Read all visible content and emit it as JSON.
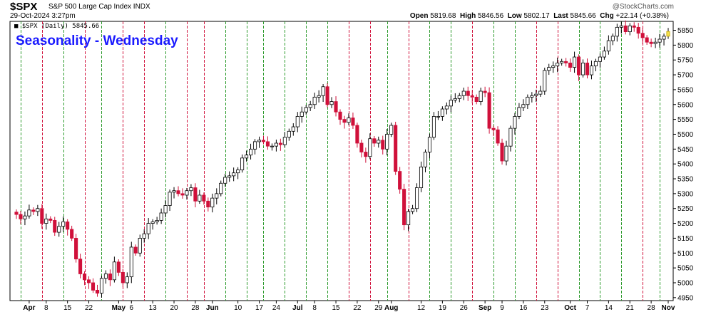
{
  "header": {
    "symbol": "$SPX",
    "name": "S&P 500 Large Cap Index INDX",
    "datetime": "29-Oct-2024 3:27pm",
    "watermark": "@StockCharts.com",
    "open_label": "Open",
    "open": "5819.68",
    "high_label": "High",
    "high": "5846.56",
    "low_label": "Low",
    "low": "5802.17",
    "last_label": "Last",
    "last": "5845.66",
    "chg_label": "Chg",
    "chg": "+22.14 (+0.38%)"
  },
  "legend": "■ $SPX (Daily) 5845.66",
  "chart_data": {
    "type": "candlestick",
    "title": "Seasonality - Wednesday",
    "ylim": [
      4940,
      5880
    ],
    "y_ticks": [
      4950,
      5000,
      5050,
      5100,
      5150,
      5200,
      5250,
      5300,
      5350,
      5400,
      5450,
      5500,
      5550,
      5600,
      5650,
      5700,
      5750,
      5800,
      5850
    ],
    "x_labels": [
      {
        "label": "Apr",
        "i": 3
      },
      {
        "label": "8",
        "i": 7
      },
      {
        "label": "15",
        "i": 12
      },
      {
        "label": "22",
        "i": 17
      },
      {
        "label": "May",
        "i": 24
      },
      {
        "label": "6",
        "i": 27
      },
      {
        "label": "13",
        "i": 32
      },
      {
        "label": "20",
        "i": 37
      },
      {
        "label": "28",
        "i": 42
      },
      {
        "label": "Jun",
        "i": 46
      },
      {
        "label": "10",
        "i": 52
      },
      {
        "label": "17",
        "i": 57
      },
      {
        "label": "24",
        "i": 61
      },
      {
        "label": "Jul",
        "i": 66
      },
      {
        "label": "8",
        "i": 70
      },
      {
        "label": "15",
        "i": 75
      },
      {
        "label": "22",
        "i": 80
      },
      {
        "label": "29",
        "i": 85
      },
      {
        "label": "Aug",
        "i": 88
      },
      {
        "label": "12",
        "i": 95
      },
      {
        "label": "19",
        "i": 100
      },
      {
        "label": "26",
        "i": 105
      },
      {
        "label": "Sep",
        "i": 110
      },
      {
        "label": "9",
        "i": 114
      },
      {
        "label": "16",
        "i": 119
      },
      {
        "label": "23",
        "i": 124
      },
      {
        "label": "Oct",
        "i": 130
      },
      {
        "label": "7",
        "i": 134
      },
      {
        "label": "14",
        "i": 139
      },
      {
        "label": "21",
        "i": 144
      },
      {
        "label": "28",
        "i": 149
      },
      {
        "label": "Nov",
        "i": 153
      }
    ],
    "wednesday_lines": [
      {
        "i": 1,
        "kind": "green"
      },
      {
        "i": 6,
        "kind": "red"
      },
      {
        "i": 11,
        "kind": "green"
      },
      {
        "i": 16,
        "kind": "red"
      },
      {
        "i": 20,
        "kind": "green"
      },
      {
        "i": 25,
        "kind": "red"
      },
      {
        "i": 30,
        "kind": "red"
      },
      {
        "i": 35,
        "kind": "green"
      },
      {
        "i": 40,
        "kind": "red"
      },
      {
        "i": 44,
        "kind": "red"
      },
      {
        "i": 49,
        "kind": "green"
      },
      {
        "i": 54,
        "kind": "green"
      },
      {
        "i": 58,
        "kind": "green"
      },
      {
        "i": 63,
        "kind": "green"
      },
      {
        "i": 68,
        "kind": "green"
      },
      {
        "i": 73,
        "kind": "green"
      },
      {
        "i": 78,
        "kind": "red"
      },
      {
        "i": 83,
        "kind": "red"
      },
      {
        "i": 87,
        "kind": "green"
      },
      {
        "i": 92,
        "kind": "red"
      },
      {
        "i": 97,
        "kind": "green"
      },
      {
        "i": 102,
        "kind": "green"
      },
      {
        "i": 107,
        "kind": "red"
      },
      {
        "i": 112,
        "kind": "green"
      },
      {
        "i": 117,
        "kind": "green"
      },
      {
        "i": 122,
        "kind": "red"
      },
      {
        "i": 127,
        "kind": "red"
      },
      {
        "i": 132,
        "kind": "green"
      },
      {
        "i": 137,
        "kind": "green"
      },
      {
        "i": 142,
        "kind": "green"
      },
      {
        "i": 147,
        "kind": "red"
      },
      {
        "i": 151,
        "kind": "green"
      }
    ],
    "closes": [
      5230,
      5215,
      5225,
      5245,
      5240,
      5250,
      5200,
      5215,
      5210,
      5170,
      5190,
      5205,
      5180,
      5150,
      5080,
      5030,
      5010,
      5000,
      4975,
      4965,
      5015,
      5030,
      5010,
      5070,
      5035,
      5000,
      5020,
      5120,
      5100,
      5150,
      5165,
      5200,
      5205,
      5210,
      5235,
      5260,
      5305,
      5310,
      5300,
      5295,
      5310,
      5320,
      5275,
      5295,
      5275,
      5255,
      5285,
      5300,
      5335,
      5355,
      5360,
      5370,
      5380,
      5420,
      5430,
      5450,
      5475,
      5480,
      5475,
      5460,
      5460,
      5470,
      5465,
      5490,
      5510,
      5525,
      5560,
      5575,
      5590,
      5600,
      5625,
      5630,
      5660,
      5600,
      5610,
      5575,
      5550,
      5540,
      5555,
      5530,
      5470,
      5440,
      5425,
      5485,
      5470,
      5480,
      5450,
      5500,
      5530,
      5375,
      5315,
      5195,
      5240,
      5250,
      5320,
      5390,
      5440,
      5490,
      5560,
      5560,
      5585,
      5595,
      5615,
      5620,
      5630,
      5645,
      5630,
      5625,
      5610,
      5645,
      5640,
      5520,
      5515,
      5470,
      5410,
      5460,
      5520,
      5560,
      5590,
      5600,
      5625,
      5630,
      5635,
      5645,
      5715,
      5725,
      5730,
      5740,
      5745,
      5740,
      5725,
      5760,
      5700,
      5740,
      5700,
      5730,
      5745,
      5760,
      5780,
      5815,
      5830,
      5860,
      5865,
      5845,
      5865,
      5860,
      5840,
      5825,
      5810,
      5805,
      5810,
      5820,
      5830,
      5846
    ],
    "candles_highlight_last": true
  },
  "colors": {
    "up_fill": "#ffffff",
    "up_stroke": "#000000",
    "down_fill": "#d0103a",
    "green_line": "#2e9b2e",
    "red_line": "#d0103a",
    "title": "#1a1aff",
    "last_candle": "#f2e04a"
  }
}
